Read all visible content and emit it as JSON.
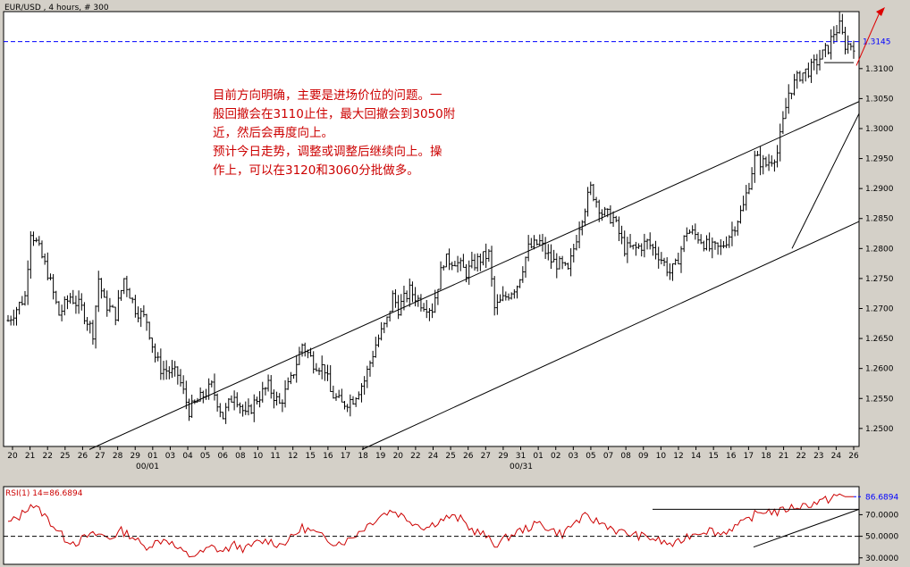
{
  "header": {
    "title": "EUR/USD , 4 hours, # 300"
  },
  "colors": {
    "price": "#000000",
    "dashed_level": "#0000ff",
    "rsi": "#cc0000",
    "annotation": "#cc0000",
    "background": "#ffffff"
  },
  "chart_data": [
    {
      "type": "ohlc",
      "title": "EUR/USD , 4 hours, # 300",
      "x_tick_labels": [
        "20",
        "21",
        "22",
        "25",
        "26",
        "27",
        "28",
        "29",
        "01",
        "03",
        "04",
        "05",
        "06",
        "08",
        "10",
        "11",
        "12",
        "15",
        "16",
        "17",
        "18",
        "19",
        "20",
        "22",
        "24",
        "25",
        "26",
        "27",
        "29",
        "31",
        "01",
        "02",
        "03",
        "05",
        "07",
        "08",
        "09",
        "10",
        "12",
        "14",
        "15",
        "16",
        "17",
        "18",
        "21",
        "22",
        "23",
        "24",
        "26"
      ],
      "x_month_labels": [
        "00/01",
        "00/31"
      ],
      "y_tick_labels": [
        "1.2500",
        "1.2550",
        "1.2600",
        "1.2650",
        "1.2700",
        "1.2750",
        "1.2800",
        "1.2850",
        "1.2900",
        "1.2950",
        "1.3000",
        "1.3050",
        "1.3100"
      ],
      "ylim": [
        1.247,
        1.3195
      ],
      "dashed_level": {
        "value": 1.3145,
        "label": "1.3145"
      },
      "grid": false,
      "close_anchors": [
        [
          0,
          1.268
        ],
        [
          6,
          1.272
        ],
        [
          8,
          1.283
        ],
        [
          10,
          1.281
        ],
        [
          14,
          1.276
        ],
        [
          18,
          1.269
        ],
        [
          22,
          1.272
        ],
        [
          26,
          1.27
        ],
        [
          30,
          1.266
        ],
        [
          32,
          1.275
        ],
        [
          34,
          1.271
        ],
        [
          38,
          1.269
        ],
        [
          41,
          1.275
        ],
        [
          45,
          1.27
        ],
        [
          49,
          1.268
        ],
        [
          52,
          1.262
        ],
        [
          54,
          1.26
        ],
        [
          60,
          1.259
        ],
        [
          64,
          1.253
        ],
        [
          68,
          1.255
        ],
        [
          72,
          1.257
        ],
        [
          76,
          1.252
        ],
        [
          80,
          1.256
        ],
        [
          84,
          1.252
        ],
        [
          88,
          1.255
        ],
        [
          92,
          1.257
        ],
        [
          96,
          1.254
        ],
        [
          100,
          1.258
        ],
        [
          104,
          1.264
        ],
        [
          108,
          1.261
        ],
        [
          112,
          1.26
        ],
        [
          114,
          1.256
        ],
        [
          118,
          1.254
        ],
        [
          122,
          1.255
        ],
        [
          126,
          1.258
        ],
        [
          130,
          1.264
        ],
        [
          134,
          1.268
        ],
        [
          136,
          1.272
        ],
        [
          138,
          1.27
        ],
        [
          142,
          1.273
        ],
        [
          146,
          1.271
        ],
        [
          150,
          1.27
        ],
        [
          154,
          1.278
        ],
        [
          158,
          1.278
        ],
        [
          162,
          1.276
        ],
        [
          166,
          1.278
        ],
        [
          170,
          1.279
        ],
        [
          172,
          1.27
        ],
        [
          176,
          1.272
        ],
        [
          180,
          1.274
        ],
        [
          184,
          1.28
        ],
        [
          188,
          1.281
        ],
        [
          192,
          1.278
        ],
        [
          196,
          1.277
        ],
        [
          198,
          1.276
        ],
        [
          202,
          1.284
        ],
        [
          206,
          1.29
        ],
        [
          210,
          1.286
        ],
        [
          214,
          1.285
        ],
        [
          218,
          1.28
        ],
        [
          222,
          1.28
        ],
        [
          226,
          1.281
        ],
        [
          230,
          1.279
        ],
        [
          234,
          1.276
        ],
        [
          236,
          1.277
        ],
        [
          240,
          1.283
        ],
        [
          244,
          1.282
        ],
        [
          248,
          1.28
        ],
        [
          252,
          1.28
        ],
        [
          256,
          1.283
        ],
        [
          260,
          1.287
        ],
        [
          264,
          1.295
        ],
        [
          268,
          1.294
        ],
        [
          272,
          1.296
        ],
        [
          276,
          1.306
        ],
        [
          280,
          1.309
        ],
        [
          284,
          1.31
        ],
        [
          290,
          1.3135
        ],
        [
          292,
          1.316
        ],
        [
          294,
          1.317
        ],
        [
          296,
          1.314
        ]
      ],
      "trend_lines": [
        {
          "from": [
            "26",
            1.2465
          ],
          "to": [
            "26",
            1.3045
          ],
          "label": "upper channel"
        },
        {
          "from": [
            "18",
            1.2465
          ],
          "to": [
            "26",
            1.2845
          ],
          "label": "lower channel"
        },
        {
          "from": [
            "21",
            1.28
          ],
          "to": [
            "26",
            1.3025
          ],
          "label": "short-term support"
        },
        {
          "from": [
            "24",
            1.311
          ],
          "to": [
            "26",
            1.311
          ],
          "label": "horizontal 1.3110"
        }
      ],
      "annotation_lines": [
        "目前方向明确，主要是进场价位的问题。一",
        "般回撤会在3110止住，最大回撤会到3050附",
        "近，然后会再度向上。",
        "预计今日走势，调整或调整后继续向上。操",
        "作上，可以在3120和3060分批做多。"
      ]
    },
    {
      "type": "line",
      "title": "RSI(1) 14=86.6894",
      "series": [
        {
          "name": "RSI(1) 14",
          "last_value": 86.6894,
          "last_label": "86.6894"
        }
      ],
      "y_tick_labels": [
        "30.0000",
        "50.0000",
        "70.0000"
      ],
      "ylim": [
        24,
        96
      ],
      "reference_line": 50,
      "rsi_anchors": [
        [
          0,
          62
        ],
        [
          4,
          68
        ],
        [
          8,
          80
        ],
        [
          12,
          72
        ],
        [
          16,
          60
        ],
        [
          20,
          48
        ],
        [
          24,
          44
        ],
        [
          28,
          50
        ],
        [
          32,
          52
        ],
        [
          36,
          48
        ],
        [
          40,
          55
        ],
        [
          44,
          50
        ],
        [
          48,
          40
        ],
        [
          52,
          44
        ],
        [
          56,
          48
        ],
        [
          60,
          38
        ],
        [
          64,
          32
        ],
        [
          68,
          34
        ],
        [
          72,
          40
        ],
        [
          76,
          36
        ],
        [
          80,
          42
        ],
        [
          84,
          38
        ],
        [
          88,
          44
        ],
        [
          92,
          46
        ],
        [
          96,
          42
        ],
        [
          100,
          48
        ],
        [
          104,
          58
        ],
        [
          108,
          54
        ],
        [
          112,
          48
        ],
        [
          116,
          44
        ],
        [
          120,
          46
        ],
        [
          124,
          54
        ],
        [
          128,
          62
        ],
        [
          132,
          70
        ],
        [
          136,
          74
        ],
        [
          140,
          68
        ],
        [
          144,
          62
        ],
        [
          148,
          58
        ],
        [
          152,
          64
        ],
        [
          156,
          68
        ],
        [
          160,
          66
        ],
        [
          164,
          56
        ],
        [
          168,
          52
        ],
        [
          172,
          42
        ],
        [
          176,
          48
        ],
        [
          180,
          54
        ],
        [
          184,
          58
        ],
        [
          188,
          62
        ],
        [
          192,
          56
        ],
        [
          196,
          52
        ],
        [
          200,
          62
        ],
        [
          204,
          68
        ],
        [
          208,
          64
        ],
        [
          212,
          60
        ],
        [
          216,
          54
        ],
        [
          220,
          52
        ],
        [
          224,
          50
        ],
        [
          228,
          48
        ],
        [
          232,
          44
        ],
        [
          236,
          42
        ],
        [
          240,
          50
        ],
        [
          244,
          54
        ],
        [
          248,
          56
        ],
        [
          252,
          52
        ],
        [
          256,
          58
        ],
        [
          260,
          62
        ],
        [
          264,
          70
        ],
        [
          268,
          74
        ],
        [
          272,
          72
        ],
        [
          276,
          76
        ],
        [
          280,
          78
        ],
        [
          284,
          80
        ],
        [
          290,
          84
        ],
        [
          292,
          88
        ],
        [
          294,
          86.6894
        ],
        [
          296,
          86.6894
        ]
      ],
      "trend_lines": [
        {
          "from": [
            "10",
            75
          ],
          "to": [
            "26",
            75
          ]
        },
        {
          "from": [
            "17",
            40
          ],
          "to": [
            "26",
            75
          ]
        }
      ]
    }
  ]
}
